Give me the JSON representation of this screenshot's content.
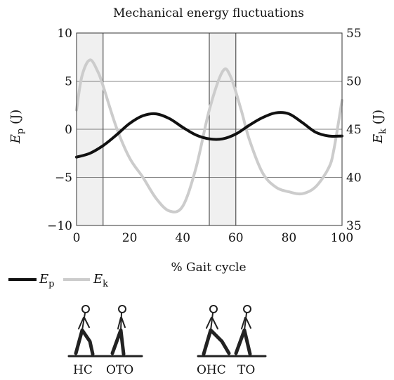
{
  "chart_data": {
    "type": "line",
    "title": "Mechanical energy fluctuations",
    "xlabel": "% Gait cycle",
    "ylabel_left": {
      "symbol": "E",
      "sub": "p",
      "unit": " (J)"
    },
    "ylabel_right": {
      "symbol": "E",
      "sub": "k",
      "unit": " (J)"
    },
    "xlim": [
      0,
      100
    ],
    "ylim_left": [
      -10,
      10
    ],
    "ylim_right": [
      35,
      55
    ],
    "xticks": [
      0,
      20,
      40,
      60,
      80,
      100
    ],
    "xtick_labels": [
      "0",
      "20",
      "40",
      "60",
      "80",
      "100"
    ],
    "yticks_left": [
      -10,
      -5,
      0,
      5,
      10
    ],
    "ytick_labels_left": [
      "−10",
      "−5",
      "0",
      "5",
      "10"
    ],
    "yticks_right": [
      35,
      40,
      45,
      50,
      55
    ],
    "ytick_labels_right": [
      "35",
      "40",
      "45",
      "50",
      "55"
    ],
    "grid": "horizontal",
    "shaded_regions": [
      [
        0,
        10
      ],
      [
        50,
        60
      ]
    ],
    "series": [
      {
        "name": "Ep",
        "symbol": "E",
        "sub": "p",
        "axis": "left",
        "color": "#111111",
        "x": [
          0,
          5,
          10,
          15,
          20,
          25,
          30,
          35,
          40,
          45,
          50,
          55,
          60,
          65,
          70,
          75,
          80,
          85,
          90,
          95,
          100
        ],
        "y": [
          -2.9,
          -2.5,
          -1.7,
          -0.6,
          0.6,
          1.4,
          1.6,
          1.1,
          0.2,
          -0.6,
          -1.0,
          -1.0,
          -0.5,
          0.4,
          1.2,
          1.7,
          1.6,
          0.7,
          -0.3,
          -0.7,
          -0.7
        ]
      },
      {
        "name": "Ek",
        "symbol": "E",
        "sub": "k",
        "axis": "right",
        "color": "#cccccc",
        "x": [
          0,
          2,
          5,
          8,
          10,
          15,
          20,
          25,
          30,
          35,
          40,
          45,
          50,
          55,
          58,
          62,
          65,
          70,
          75,
          80,
          85,
          90,
          95,
          97,
          100
        ],
        "y": [
          47.0,
          50.5,
          52.2,
          51.0,
          49.5,
          45.2,
          42.0,
          40.0,
          37.8,
          36.5,
          37.0,
          41.0,
          47.0,
          51.0,
          50.5,
          47.0,
          44.0,
          40.5,
          39.0,
          38.5,
          38.3,
          39.0,
          41.0,
          43.0,
          48.0
        ]
      }
    ],
    "legend": "below-left",
    "phase_labels": [
      "HC",
      "OTO",
      "OHC",
      "TO"
    ]
  },
  "colors": {
    "shade": "#f0f0f0",
    "ep": "#111111",
    "ek": "#cccccc"
  }
}
